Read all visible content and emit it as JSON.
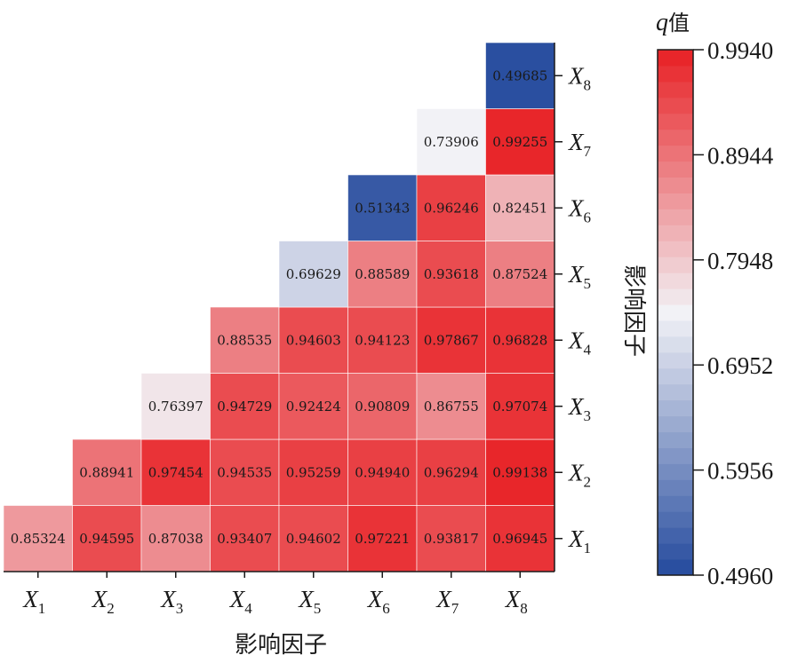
{
  "chart_data": {
    "type": "heatmap",
    "x_categories": [
      "X1",
      "X2",
      "X3",
      "X4",
      "X5",
      "X6",
      "X7",
      "X8"
    ],
    "y_categories": [
      "X1",
      "X2",
      "X3",
      "X4",
      "X5",
      "X6",
      "X7",
      "X8"
    ],
    "x_tick_labels": [
      {
        "base": "X",
        "sub": "1"
      },
      {
        "base": "X",
        "sub": "2"
      },
      {
        "base": "X",
        "sub": "3"
      },
      {
        "base": "X",
        "sub": "4"
      },
      {
        "base": "X",
        "sub": "5"
      },
      {
        "base": "X",
        "sub": "6"
      },
      {
        "base": "X",
        "sub": "7"
      },
      {
        "base": "X",
        "sub": "8"
      }
    ],
    "y_tick_labels": [
      {
        "base": "X",
        "sub": "1"
      },
      {
        "base": "X",
        "sub": "2"
      },
      {
        "base": "X",
        "sub": "3"
      },
      {
        "base": "X",
        "sub": "4"
      },
      {
        "base": "X",
        "sub": "5"
      },
      {
        "base": "X",
        "sub": "6"
      },
      {
        "base": "X",
        "sub": "7"
      },
      {
        "base": "X",
        "sub": "8"
      }
    ],
    "cells": [
      {
        "x": "X1",
        "y": "X1",
        "value": 0.85324,
        "label": "0.85324"
      },
      {
        "x": "X2",
        "y": "X1",
        "value": 0.94595,
        "label": "0.94595"
      },
      {
        "x": "X3",
        "y": "X1",
        "value": 0.87038,
        "label": "0.87038"
      },
      {
        "x": "X4",
        "y": "X1",
        "value": 0.93407,
        "label": "0.93407"
      },
      {
        "x": "X5",
        "y": "X1",
        "value": 0.94602,
        "label": "0.94602"
      },
      {
        "x": "X6",
        "y": "X1",
        "value": 0.97221,
        "label": "0.97221"
      },
      {
        "x": "X7",
        "y": "X1",
        "value": 0.93817,
        "label": "0.93817"
      },
      {
        "x": "X8",
        "y": "X1",
        "value": 0.96945,
        "label": "0.96945"
      },
      {
        "x": "X2",
        "y": "X2",
        "value": 0.88941,
        "label": "0.88941"
      },
      {
        "x": "X3",
        "y": "X2",
        "value": 0.97454,
        "label": "0.97454"
      },
      {
        "x": "X4",
        "y": "X2",
        "value": 0.94535,
        "label": "0.94535"
      },
      {
        "x": "X5",
        "y": "X2",
        "value": 0.95259,
        "label": "0.95259"
      },
      {
        "x": "X6",
        "y": "X2",
        "value": 0.9494,
        "label": "0.94940"
      },
      {
        "x": "X7",
        "y": "X2",
        "value": 0.96294,
        "label": "0.96294"
      },
      {
        "x": "X8",
        "y": "X2",
        "value": 0.99138,
        "label": "0.99138"
      },
      {
        "x": "X3",
        "y": "X3",
        "value": 0.76397,
        "label": "0.76397"
      },
      {
        "x": "X4",
        "y": "X3",
        "value": 0.94729,
        "label": "0.94729"
      },
      {
        "x": "X5",
        "y": "X3",
        "value": 0.92424,
        "label": "0.92424"
      },
      {
        "x": "X6",
        "y": "X3",
        "value": 0.90809,
        "label": "0.90809"
      },
      {
        "x": "X7",
        "y": "X3",
        "value": 0.86755,
        "label": "0.86755"
      },
      {
        "x": "X8",
        "y": "X3",
        "value": 0.97074,
        "label": "0.97074"
      },
      {
        "x": "X4",
        "y": "X4",
        "value": 0.88535,
        "label": "0.88535"
      },
      {
        "x": "X5",
        "y": "X4",
        "value": 0.94603,
        "label": "0.94603"
      },
      {
        "x": "X6",
        "y": "X4",
        "value": 0.94123,
        "label": "0.94123"
      },
      {
        "x": "X7",
        "y": "X4",
        "value": 0.97867,
        "label": "0.97867"
      },
      {
        "x": "X8",
        "y": "X4",
        "value": 0.96828,
        "label": "0.96828"
      },
      {
        "x": "X5",
        "y": "X5",
        "value": 0.69629,
        "label": "0.69629"
      },
      {
        "x": "X6",
        "y": "X5",
        "value": 0.88589,
        "label": "0.88589"
      },
      {
        "x": "X7",
        "y": "X5",
        "value": 0.93618,
        "label": "0.93618"
      },
      {
        "x": "X8",
        "y": "X5",
        "value": 0.87524,
        "label": "0.87524"
      },
      {
        "x": "X6",
        "y": "X6",
        "value": 0.51343,
        "label": "0.51343"
      },
      {
        "x": "X7",
        "y": "X6",
        "value": 0.96246,
        "label": "0.96246"
      },
      {
        "x": "X8",
        "y": "X6",
        "value": 0.82451,
        "label": "0.82451"
      },
      {
        "x": "X7",
        "y": "X7",
        "value": 0.73906,
        "label": "0.73906"
      },
      {
        "x": "X8",
        "y": "X7",
        "value": 0.99255,
        "label": "0.99255"
      },
      {
        "x": "X8",
        "y": "X8",
        "value": 0.49685,
        "label": "0.49685"
      }
    ],
    "xlabel": "影响因子",
    "ylabel": "影响因子",
    "ylabel_position": "right",
    "colorbar": {
      "title_italic": "q",
      "title_rest": "值",
      "min": 0.496,
      "max": 0.994,
      "ticks": [
        "0.9940",
        "0.8944",
        "0.7948",
        "0.6952",
        "0.5956",
        "0.4960"
      ],
      "low_color": "#2a4fa0",
      "mid_color": "#f2f2f6",
      "high_color": "#e8262a",
      "steps": 33
    },
    "grid": false,
    "legend": "colorbar-right"
  }
}
